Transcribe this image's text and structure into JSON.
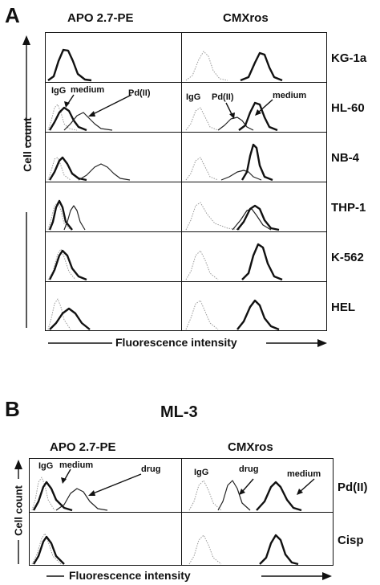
{
  "panel_a": {
    "letter": "A",
    "col_titles": [
      "APO 2.7-PE",
      "CMXros"
    ],
    "row_labels": [
      "KG-1a",
      "HL-60",
      "NB-4",
      "THP-1",
      "K-562",
      "HEL"
    ],
    "y_axis_label": "Cell count",
    "x_axis_label": "Fluorescence intensity",
    "annotations": {
      "left_igg": "IgG",
      "left_medium": "medium",
      "left_pd": "Pd(II)",
      "right_igg": "IgG",
      "right_pd": "Pd(II)",
      "right_medium": "medium"
    }
  },
  "panel_b": {
    "letter": "B",
    "title": "ML-3",
    "col_titles": [
      "APO 2.7-PE",
      "CMXros"
    ],
    "row_labels": [
      "Pd(II)",
      "Cisp"
    ],
    "y_axis_label": "Cell count",
    "x_axis_label": "Fluorescence intensity",
    "annotations": {
      "left_igg": "IgG",
      "left_medium": "medium",
      "left_drug": "drug",
      "right_igg": "IgG",
      "right_drug": "drug",
      "right_medium": "medium"
    }
  }
}
